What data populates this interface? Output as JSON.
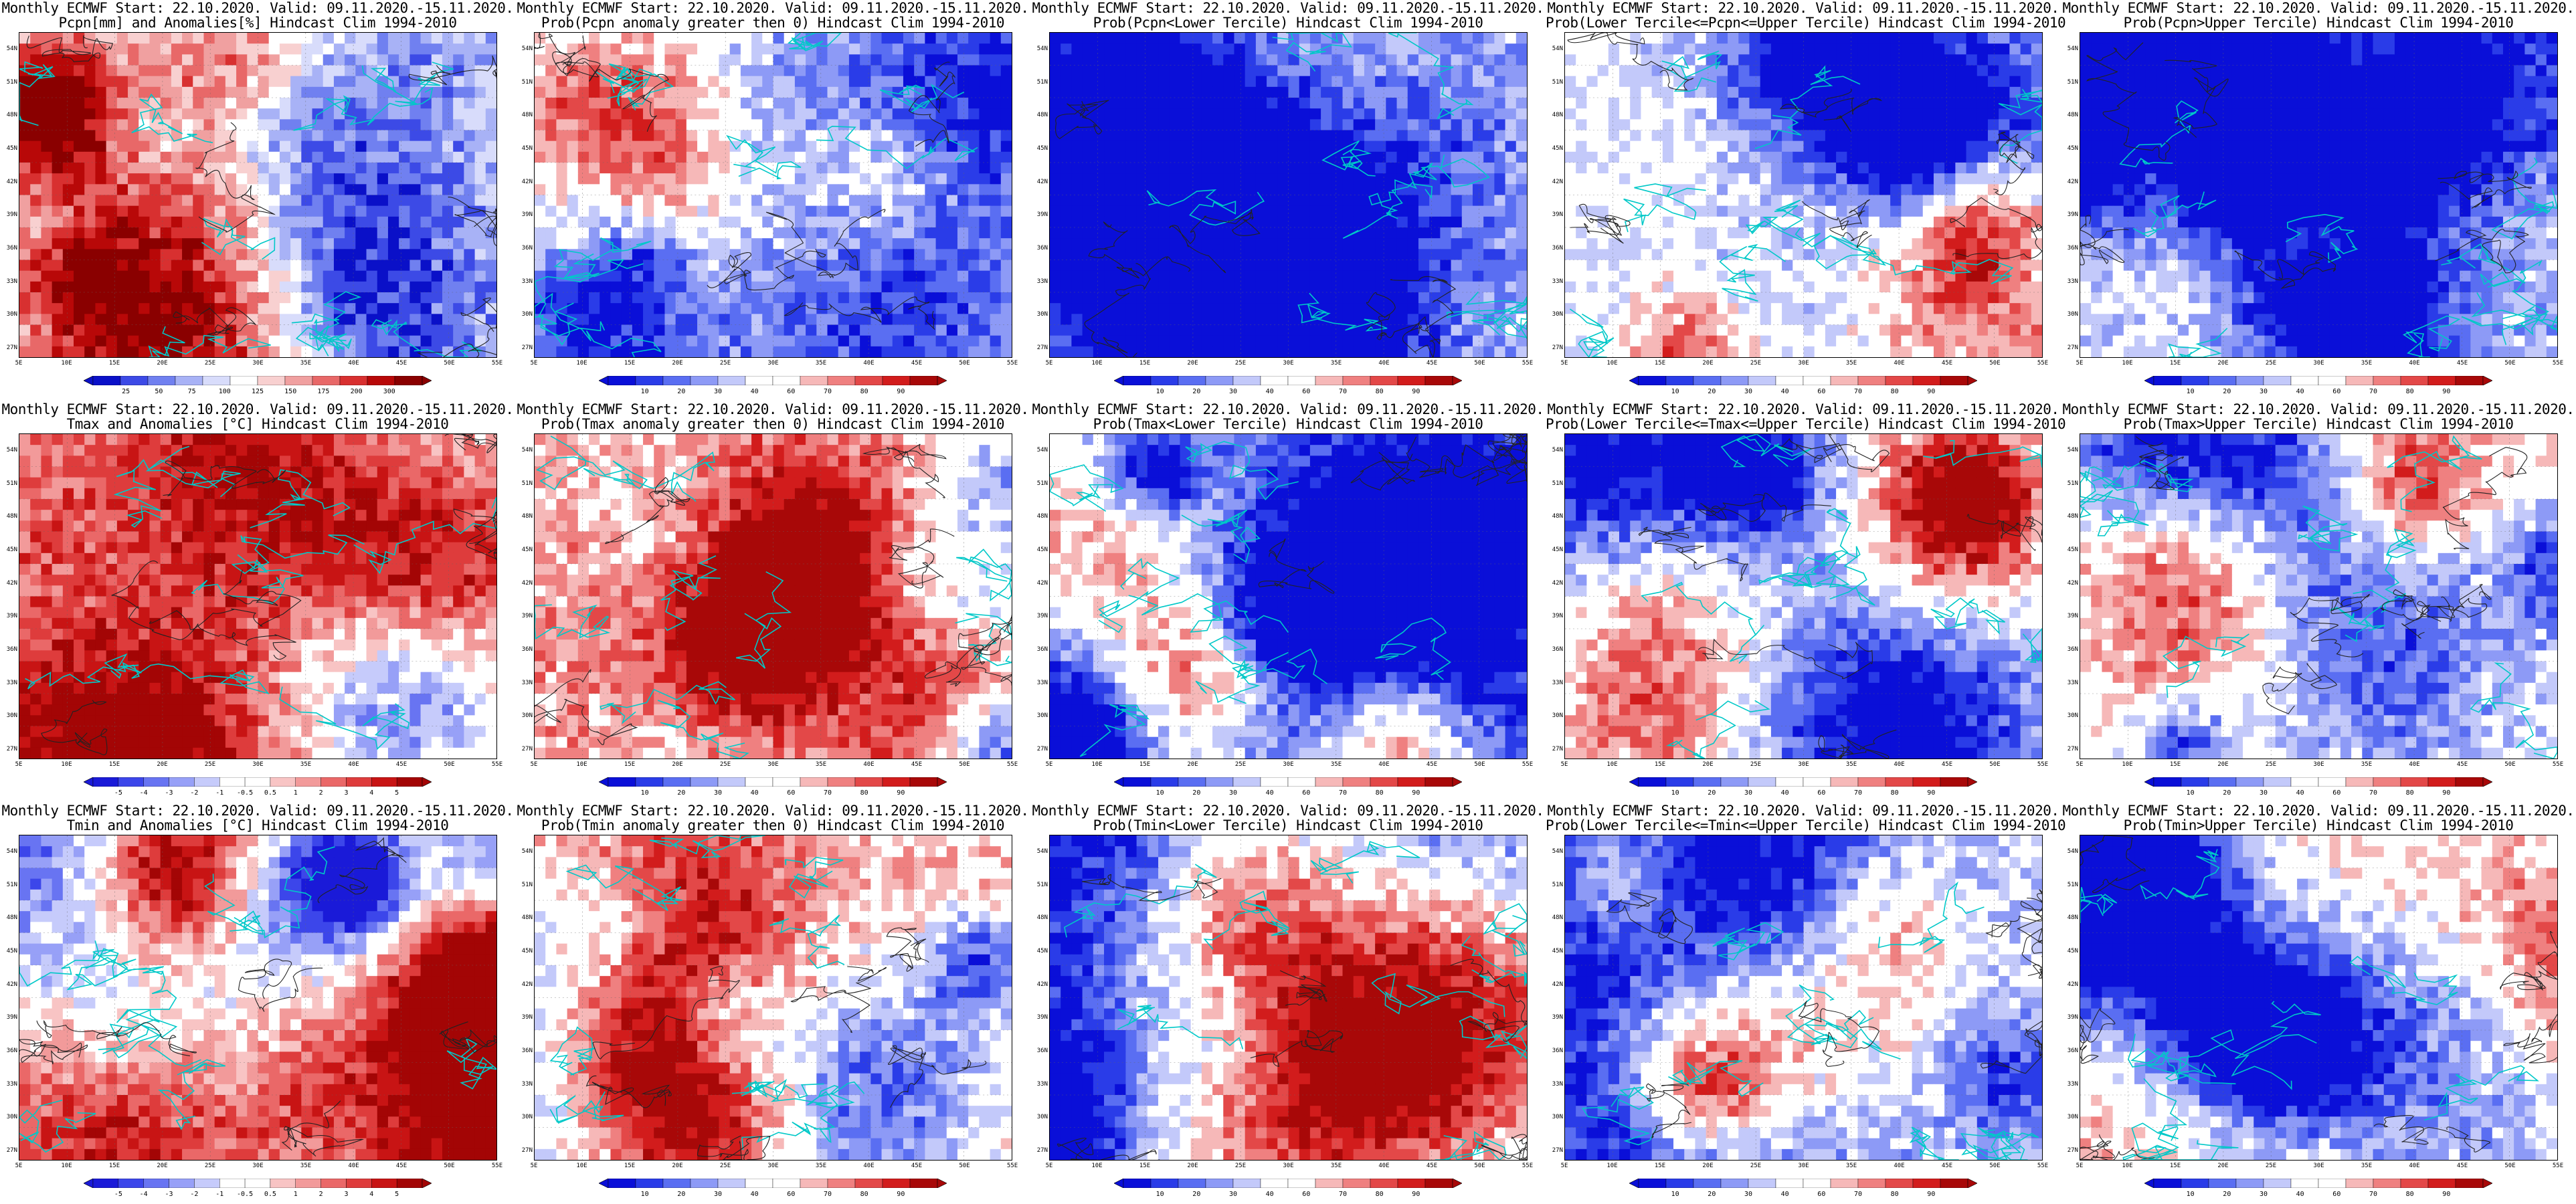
{
  "palettes": {
    "prob": [
      "#0a0fd8",
      "#2a3ce8",
      "#5a6ef2",
      "#8d9af6",
      "#c3c9fa",
      "#ffffff",
      "#ffffff",
      "#f6b8b8",
      "#ef8080",
      "#e34848",
      "#d21c1c",
      "#a80808"
    ],
    "anom": [
      "#1a1ad8",
      "#3c46ea",
      "#6874f2",
      "#97a0f7",
      "#c6cbfb",
      "#ffffff",
      "#ffffff",
      "#f8c4c4",
      "#f29a9a",
      "#ea6868",
      "#de3c3c",
      "#c81414",
      "#a30505"
    ],
    "pcpn": [
      "#0a10c8",
      "#3c4ae6",
      "#7080f0",
      "#a8b2f6",
      "#d8dcfb",
      "#ffffff",
      "#f8d0d0",
      "#f0a0a0",
      "#e86868",
      "#d83030",
      "#b80808",
      "#8a0000"
    ],
    "coast": "#00c8c8",
    "contour": "#222222"
  },
  "lat_labels": [
    "54N",
    "51N",
    "48N",
    "45N",
    "42N",
    "39N",
    "36N",
    "33N",
    "30N",
    "27N"
  ],
  "lon_labels": [
    "5E",
    "10E",
    "15E",
    "20E",
    "25E",
    "30E",
    "35E",
    "40E",
    "45E",
    "50E",
    "55E"
  ],
  "panels": [
    {
      "title1": "Monthly ECMWF Start: 22.10.2020. Valid: 09.11.2020.-15.11.2020.",
      "title2": "Pcpn[mm] and Anomalies[%] Hindcast Clim 1994-2010",
      "palette": "pcpn",
      "bias": -0.1,
      "labels": [
        "25",
        "50",
        "75",
        "100",
        "125",
        "150",
        "175",
        "200",
        "300"
      ],
      "seed": 11
    },
    {
      "title1": "Monthly ECMWF Start: 22.10.2020. Valid: 09.11.2020.-15.11.2020.",
      "title2": "Prob(Pcpn anomaly greater then 0) Hindcast Clim 1994-2010",
      "palette": "prob",
      "bias": -0.35,
      "labels": [
        "10",
        "20",
        "30",
        "40",
        "60",
        "70",
        "80",
        "90"
      ],
      "seed": 23
    },
    {
      "title1": "Monthly ECMWF Start: 22.10.2020. Valid: 09.11.2020.-15.11.2020.",
      "title2": "Prob(Pcpn<Lower Tercile) Hindcast Clim 1994-2010",
      "palette": "prob",
      "bias": -0.25,
      "labels": [
        "10",
        "20",
        "30",
        "40",
        "60",
        "70",
        "80",
        "90"
      ],
      "seed": 37
    },
    {
      "title1": "Monthly ECMWF Start: 22.10.2020. Valid: 09.11.2020.-15.11.2020.",
      "title2": "Prob(Lower Tercile<=Pcpn<=Upper Tercile) Hindcast Clim 1994-2010",
      "palette": "prob",
      "bias": -0.1,
      "labels": [
        "10",
        "20",
        "30",
        "40",
        "60",
        "70",
        "80",
        "90"
      ],
      "seed": 41
    },
    {
      "title1": "Monthly ECMWF Start: 22.10.2020. Valid: 09.11.2020.-15.11.2020.",
      "title2": "Prob(Pcpn>Upper Tercile) Hindcast Clim 1994-2010",
      "palette": "prob",
      "bias": -0.3,
      "labels": [
        "10",
        "20",
        "30",
        "40",
        "60",
        "70",
        "80",
        "90"
      ],
      "seed": 53
    },
    {
      "title1": "Monthly ECMWF Start: 22.10.2020. Valid: 09.11.2020.-15.11.2020.",
      "title2": "Tmax and Anomalies [°C] Hindcast Clim 1994-2010",
      "palette": "anom",
      "bias": 0.3,
      "labels": [
        "-5",
        "-4",
        "-3",
        "-2",
        "-1",
        "-0.5",
        "0.5",
        "1",
        "2",
        "3",
        "4",
        "5"
      ],
      "seed": 61
    },
    {
      "title1": "Monthly ECMWF Start: 22.10.2020. Valid: 09.11.2020.-15.11.2020.",
      "title2": "Prob(Tmax anomaly greater then 0) Hindcast Clim 1994-2010",
      "palette": "prob",
      "bias": 0.3,
      "labels": [
        "10",
        "20",
        "30",
        "40",
        "60",
        "70",
        "80",
        "90"
      ],
      "seed": 71
    },
    {
      "title1": "Monthly ECMWF Start: 22.10.2020. Valid: 09.11.2020.-15.11.2020.",
      "title2": "Prob(Tmax<Lower Tercile) Hindcast Clim 1994-2010",
      "palette": "prob",
      "bias": -0.45,
      "labels": [
        "10",
        "20",
        "30",
        "40",
        "60",
        "70",
        "80",
        "90"
      ],
      "seed": 83
    },
    {
      "title1": "Monthly ECMWF Start: 22.10.2020. Valid: 09.11.2020.-15.11.2020.",
      "title2": "Prob(Lower Tercile<=Tmax<=Upper Tercile) Hindcast Clim 1994-2010",
      "palette": "prob",
      "bias": -0.2,
      "labels": [
        "10",
        "20",
        "30",
        "40",
        "60",
        "70",
        "80",
        "90"
      ],
      "seed": 97
    },
    {
      "title1": "Monthly ECMWF Start: 22.10.2020. Valid: 09.11.2020.-15.11.2020.",
      "title2": "Prob(Tmax>Upper Tercile) Hindcast Clim 1994-2010",
      "palette": "prob",
      "bias": 0.0,
      "labels": [
        "10",
        "20",
        "30",
        "40",
        "60",
        "70",
        "80",
        "90"
      ],
      "seed": 101
    },
    {
      "title1": "Monthly ECMWF Start: 22.10.2020. Valid: 09.11.2020.-15.11.2020.",
      "title2": "Tmin and Anomalies [°C] Hindcast Clim 1994-2010",
      "palette": "anom",
      "bias": 0.25,
      "labels": [
        "-5",
        "-4",
        "-3",
        "-2",
        "-1",
        "-0.5",
        "0.5",
        "1",
        "2",
        "3",
        "4",
        "5"
      ],
      "seed": 113
    },
    {
      "title1": "Monthly ECMWF Start: 22.10.2020. Valid: 09.11.2020.-15.11.2020.",
      "title2": "Prob(Tmin anomaly greater then 0) Hindcast Clim 1994-2010",
      "palette": "prob",
      "bias": 0.3,
      "labels": [
        "10",
        "20",
        "30",
        "40",
        "60",
        "70",
        "80",
        "90"
      ],
      "seed": 127
    },
    {
      "title1": "Monthly ECMWF Start: 22.10.2020. Valid: 09.11.2020.-15.11.2020.",
      "title2": "Prob(Tmin<Lower Tercile) Hindcast Clim 1994-2010",
      "palette": "prob",
      "bias": -0.45,
      "labels": [
        "10",
        "20",
        "30",
        "40",
        "60",
        "70",
        "80",
        "90"
      ],
      "seed": 139
    },
    {
      "title1": "Monthly ECMWF Start: 22.10.2020. Valid: 09.11.2020.-15.11.2020.",
      "title2": "Prob(Lower Tercile<=Tmin<=Upper Tercile) Hindcast Clim 1994-2010",
      "palette": "prob",
      "bias": -0.2,
      "labels": [
        "10",
        "20",
        "30",
        "40",
        "60",
        "70",
        "80",
        "90"
      ],
      "seed": 149
    },
    {
      "title1": "Monthly ECMWF Start: 22.10.2020. Valid: 09.11.2020.-15.11.2020.",
      "title2": "Prob(Tmin>Upper Tercile) Hindcast Clim 1994-2010",
      "palette": "prob",
      "bias": 0.0,
      "labels": [
        "10",
        "20",
        "30",
        "40",
        "60",
        "70",
        "80",
        "90"
      ],
      "seed": 157
    }
  ]
}
